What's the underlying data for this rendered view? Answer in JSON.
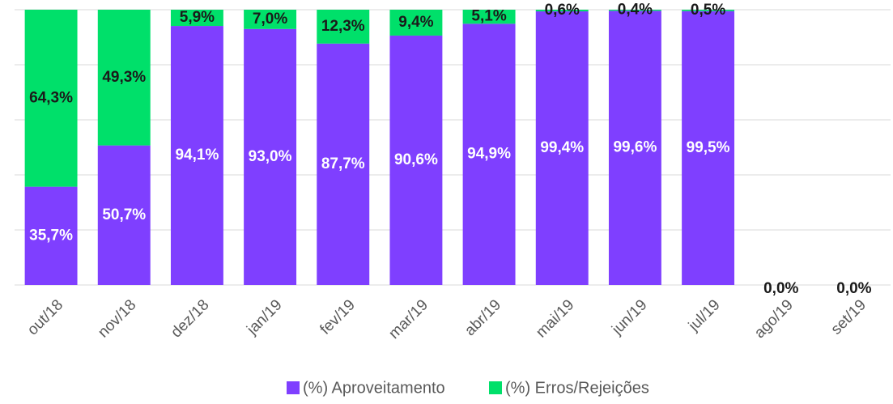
{
  "chart_data": {
    "type": "bar",
    "stacked": true,
    "categories": [
      "out/18",
      "nov/18",
      "dez/18",
      "jan/19",
      "fev/19",
      "mar/19",
      "abr/19",
      "mai/19",
      "jun/19",
      "jul/19",
      "ago/19",
      "set/19"
    ],
    "series": [
      {
        "name": "(%) Aproveitamento",
        "color": "#7f3fff",
        "label_color": "#ffffff",
        "values": [
          35.7,
          50.7,
          94.1,
          93.0,
          87.7,
          90.6,
          94.9,
          99.4,
          99.6,
          99.5,
          0,
          0
        ],
        "value_labels": [
          "35,7%",
          "50,7%",
          "94,1%",
          "93,0%",
          "87,7%",
          "90,6%",
          "94,9%",
          "99,4%",
          "99,6%",
          "99,5%",
          null,
          null
        ]
      },
      {
        "name": "(%) Erros/Rejeições",
        "color": "#00e06a",
        "label_color": "#1a1a1a",
        "values": [
          64.3,
          49.3,
          5.9,
          7.0,
          12.3,
          9.4,
          5.1,
          0.6,
          0.4,
          0.5,
          0,
          0
        ],
        "value_labels": [
          "64,3%",
          "49,3%",
          "5,9%",
          "7,0%",
          "12,3%",
          "9,4%",
          "5,1%",
          "0,6%",
          "0,4%",
          "0,5%",
          "0,0%",
          "0,0%"
        ]
      }
    ],
    "ylim": [
      0,
      100
    ],
    "yticks": [
      0,
      20,
      40,
      60,
      80,
      100
    ],
    "grid": true,
    "legend": "bottom"
  }
}
